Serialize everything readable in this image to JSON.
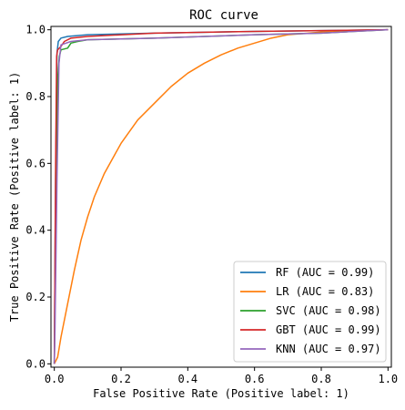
{
  "chart_data": {
    "type": "line",
    "title": "ROC curve",
    "xlabel": "False Positive Rate (Positive label: 1)",
    "ylabel": "True Positive Rate (Positive label: 1)",
    "xlim": [
      -0.01,
      1.01
    ],
    "ylim": [
      -0.01,
      1.01
    ],
    "xticks": [
      0.0,
      0.2,
      0.4,
      0.6,
      0.8,
      1.0
    ],
    "yticks": [
      0.0,
      0.2,
      0.4,
      0.6,
      0.8,
      1.0
    ],
    "xtick_labels": [
      "0.0",
      "0.2",
      "0.4",
      "0.6",
      "0.8",
      "1.0"
    ],
    "ytick_labels": [
      "0.0",
      "0.2",
      "0.4",
      "0.6",
      "0.8",
      "1.0"
    ],
    "grid": false,
    "legend_position": "lower-right",
    "series": [
      {
        "name": "RF (AUC = 0.99)",
        "color": "#1f77b4",
        "points": [
          [
            0,
            0
          ],
          [
            0.004,
            0.55
          ],
          [
            0.008,
            0.93
          ],
          [
            0.012,
            0.965
          ],
          [
            0.02,
            0.975
          ],
          [
            0.04,
            0.98
          ],
          [
            0.1,
            0.985
          ],
          [
            0.3,
            0.99
          ],
          [
            0.6,
            0.995
          ],
          [
            1.0,
            1.0
          ]
        ]
      },
      {
        "name": "LR (AUC = 0.83)",
        "color": "#ff7f0e",
        "points": [
          [
            0,
            0
          ],
          [
            0.01,
            0.02
          ],
          [
            0.02,
            0.08
          ],
          [
            0.04,
            0.18
          ],
          [
            0.06,
            0.28
          ],
          [
            0.08,
            0.37
          ],
          [
            0.1,
            0.44
          ],
          [
            0.12,
            0.5
          ],
          [
            0.15,
            0.57
          ],
          [
            0.2,
            0.66
          ],
          [
            0.25,
            0.73
          ],
          [
            0.3,
            0.78
          ],
          [
            0.35,
            0.83
          ],
          [
            0.4,
            0.87
          ],
          [
            0.45,
            0.9
          ],
          [
            0.5,
            0.925
          ],
          [
            0.55,
            0.945
          ],
          [
            0.6,
            0.96
          ],
          [
            0.65,
            0.975
          ],
          [
            0.7,
            0.985
          ],
          [
            0.8,
            0.993
          ],
          [
            0.9,
            0.997
          ],
          [
            1.0,
            1.0
          ]
        ]
      },
      {
        "name": "SVC (AUC = 0.98)",
        "color": "#2ca02c",
        "points": [
          [
            0,
            0
          ],
          [
            0.005,
            0.5
          ],
          [
            0.01,
            0.85
          ],
          [
            0.015,
            0.92
          ],
          [
            0.02,
            0.94
          ],
          [
            0.04,
            0.945
          ],
          [
            0.05,
            0.96
          ],
          [
            0.07,
            0.965
          ],
          [
            0.1,
            0.97
          ],
          [
            0.3,
            0.975
          ],
          [
            0.6,
            0.985
          ],
          [
            0.8,
            0.99
          ],
          [
            1.0,
            1.0
          ]
        ]
      },
      {
        "name": "GBT (AUC = 0.99)",
        "color": "#d62728",
        "points": [
          [
            0,
            0
          ],
          [
            0.004,
            0.6
          ],
          [
            0.007,
            0.92
          ],
          [
            0.01,
            0.94
          ],
          [
            0.02,
            0.95
          ],
          [
            0.03,
            0.965
          ],
          [
            0.05,
            0.975
          ],
          [
            0.1,
            0.98
          ],
          [
            0.3,
            0.99
          ],
          [
            0.6,
            0.995
          ],
          [
            1.0,
            1.0
          ]
        ]
      },
      {
        "name": "KNN (AUC = 0.97)",
        "color": "#9467bd",
        "points": [
          [
            0,
            0
          ],
          [
            0.002,
            0.1
          ],
          [
            0.008,
            0.55
          ],
          [
            0.014,
            0.9
          ],
          [
            0.02,
            0.955
          ],
          [
            0.05,
            0.965
          ],
          [
            0.1,
            0.97
          ],
          [
            0.3,
            0.975
          ],
          [
            0.6,
            0.985
          ],
          [
            0.8,
            0.99
          ],
          [
            1.0,
            1.0
          ]
        ]
      }
    ]
  }
}
